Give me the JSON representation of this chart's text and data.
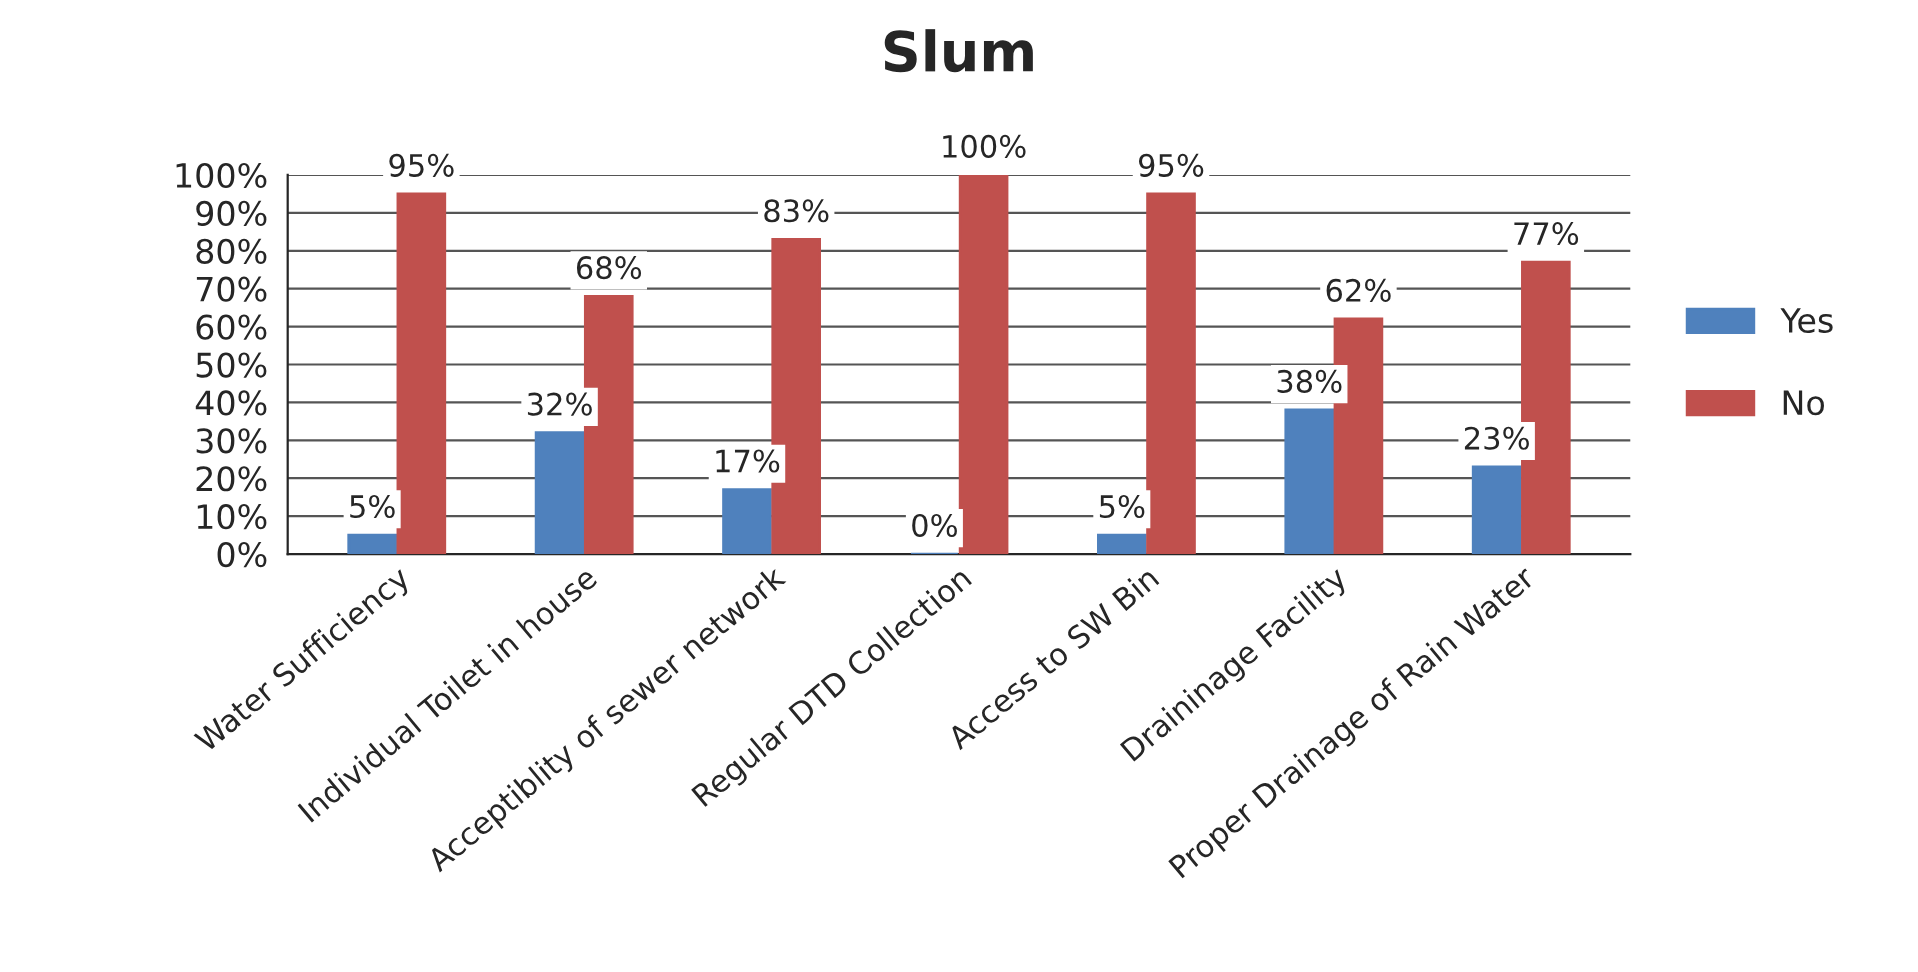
{
  "chart_data": {
    "type": "bar",
    "title": "Slum",
    "categories": [
      "Water Sufficiency",
      "Individual Toilet in house",
      "Acceptiblity of sewer network",
      "Regular DTD Collection",
      "Access to SW Bin",
      "Draininage Facility",
      "Proper Drainage of Rain Water"
    ],
    "series": [
      {
        "name": "Yes",
        "color": "#4f81bd",
        "values": [
          5,
          32,
          17,
          0,
          5,
          38,
          23
        ],
        "value_labels": [
          "5%",
          "32%",
          "17%",
          "0%",
          "5%",
          "38%",
          "23%"
        ]
      },
      {
        "name": "No",
        "color": "#c0504d",
        "values": [
          95,
          68,
          83,
          100,
          95,
          62,
          77
        ],
        "value_labels": [
          "95%",
          "68%",
          "83%",
          "100%",
          "95%",
          "62%",
          "77%"
        ]
      }
    ],
    "ylim": [
      0,
      100
    ],
    "yticks": [
      {
        "value": 0,
        "label": "0%"
      },
      {
        "value": 10,
        "label": "10%"
      },
      {
        "value": 20,
        "label": "20%"
      },
      {
        "value": 30,
        "label": "30%"
      },
      {
        "value": 40,
        "label": "40%"
      },
      {
        "value": 50,
        "label": "50%"
      },
      {
        "value": 60,
        "label": "60%"
      },
      {
        "value": 70,
        "label": "70%"
      },
      {
        "value": 80,
        "label": "80%"
      },
      {
        "value": 90,
        "label": "90%"
      },
      {
        "value": 100,
        "label": "100%"
      }
    ],
    "grid": "y",
    "legend": "right"
  }
}
